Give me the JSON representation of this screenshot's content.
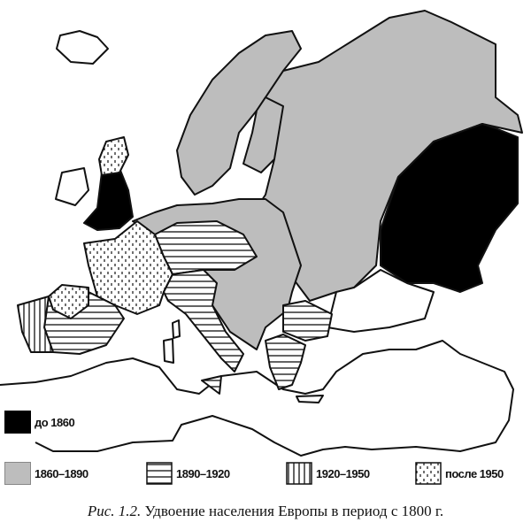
{
  "legend": [
    {
      "label": "до 1860",
      "fill": "#000000",
      "pattern": "solid-black"
    },
    {
      "label": "1860–1890",
      "fill": "#bdbdbd",
      "pattern": "solid-gray"
    },
    {
      "label": "1890–1920",
      "fill": "#ffffff",
      "pattern": "horizontal-stripes"
    },
    {
      "label": "1920–1950",
      "fill": "#ffffff",
      "pattern": "vertical-stripes"
    },
    {
      "label": "после 1950",
      "fill": "#ffffff",
      "pattern": "dots"
    }
  ],
  "caption": {
    "figure": "Рис. 1.2.",
    "text": "Удвоение населения Европы в период с 1800 г."
  },
  "colors": {
    "gray": "#bdbdbd",
    "black": "#000000",
    "outline": "#111111"
  }
}
